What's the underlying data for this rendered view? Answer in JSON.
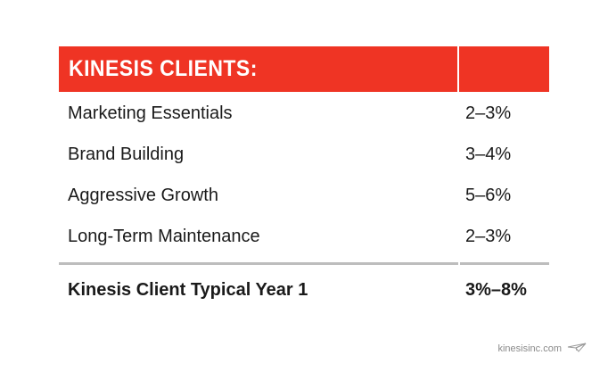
{
  "table": {
    "header": "KINESIS CLIENTS:",
    "rows": [
      {
        "label": "Marketing Essentials",
        "value": "2–3%"
      },
      {
        "label": "Brand Building",
        "value": "3–4%"
      },
      {
        "label": "Aggressive Growth",
        "value": "5–6%"
      },
      {
        "label": "Long-Term Maintenance",
        "value": "2–3%"
      }
    ],
    "total": {
      "label": "Kinesis Client Typical Year 1",
      "value": "3%–8%"
    }
  },
  "footer": {
    "text": "kinesisinc.com"
  },
  "colors": {
    "header_bg": "#ef3424",
    "divider": "#bdbdbd"
  }
}
